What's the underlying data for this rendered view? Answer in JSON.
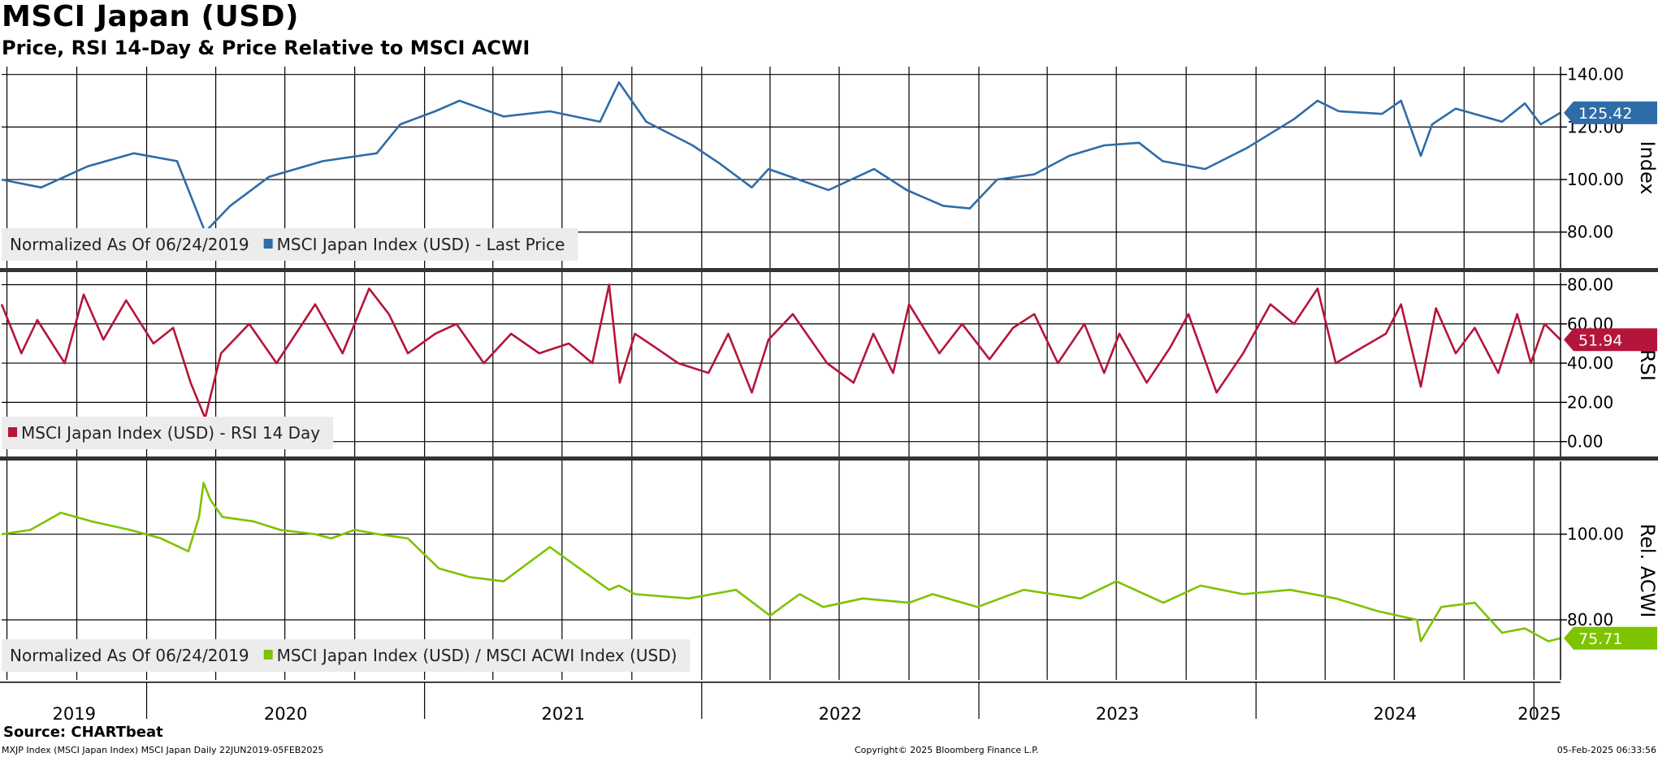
{
  "header": {
    "title": "MSCI Japan (USD)",
    "subtitle": "Price, RSI 14-Day & Price Relative to MSCI ACWI"
  },
  "footer": {
    "source": "Source: CHARTbeat",
    "left": "MXJP Index (MSCI Japan Index) MSCI Japan  Daily 22JUN2019-05FEB2025",
    "center": "Copyright© 2025 Bloomberg Finance L.P.",
    "right": "05-Feb-2025 06:33:56"
  },
  "chart_data": [
    {
      "type": "line",
      "name": "price-panel",
      "ylabel": "Index",
      "ylim": [
        66,
        143
      ],
      "yticks": [
        80,
        100,
        120,
        140
      ],
      "ytick_labels": [
        "80.00",
        "100.00",
        "120.00",
        "140.00"
      ],
      "legend": [
        "Normalized As Of 06/24/2019",
        "MSCI Japan Index (USD) - Last Price"
      ],
      "last_value": "125.42",
      "series": [
        {
          "name": "MSCI Japan Index (USD) - Last Price",
          "color": "#2e6ca8",
          "x": [
            "2019-06-24",
            "2019-08-15",
            "2019-10-15",
            "2019-12-15",
            "2020-02-10",
            "2020-03-18",
            "2020-04-20",
            "2020-06-10",
            "2020-08-20",
            "2020-10-30",
            "2020-11-30",
            "2021-01-15",
            "2021-02-16",
            "2021-04-15",
            "2021-06-15",
            "2021-08-20",
            "2021-09-14",
            "2021-10-20",
            "2021-12-20",
            "2022-01-25",
            "2022-03-08",
            "2022-03-30",
            "2022-06-17",
            "2022-08-16",
            "2022-09-28",
            "2022-11-15",
            "2022-12-20",
            "2023-01-25",
            "2023-03-15",
            "2023-04-30",
            "2023-06-15",
            "2023-07-31",
            "2023-08-31",
            "2023-10-26",
            "2023-12-20",
            "2024-02-20",
            "2024-03-22",
            "2024-04-19",
            "2024-06-15",
            "2024-07-10",
            "2024-08-05",
            "2024-08-20",
            "2024-09-20",
            "2024-11-20",
            "2024-12-20",
            "2025-01-10",
            "2025-02-05"
          ],
          "values": [
            100,
            97,
            105,
            110,
            107,
            80,
            90,
            101,
            107,
            110,
            121,
            126,
            130,
            124,
            126,
            122,
            137,
            122,
            113,
            106,
            97,
            104,
            96,
            104,
            96,
            90,
            89,
            100,
            102,
            109,
            113,
            114,
            107,
            104,
            112,
            123,
            130,
            126,
            125,
            130,
            109,
            121,
            127,
            122,
            129,
            121,
            125.42
          ]
        }
      ]
    },
    {
      "type": "line",
      "name": "rsi-panel",
      "ylabel": "RSI",
      "ylim": [
        -8,
        86
      ],
      "yticks": [
        0,
        20,
        40,
        60,
        80
      ],
      "ytick_labels": [
        "0.00",
        "20.00",
        "40.00",
        "60.00",
        "80.00"
      ],
      "legend": [
        "MSCI Japan Index (USD) - RSI 14 Day"
      ],
      "last_value": "51.94",
      "series": [
        {
          "name": "MSCI Japan Index (USD) - RSI 14 Day",
          "color": "#b5153a",
          "x": [
            "2019-06-24",
            "2019-07-20",
            "2019-08-10",
            "2019-09-15",
            "2019-10-10",
            "2019-11-05",
            "2019-12-05",
            "2020-01-10",
            "2020-02-05",
            "2020-02-28",
            "2020-03-18",
            "2020-04-08",
            "2020-05-15",
            "2020-06-20",
            "2020-08-10",
            "2020-09-15",
            "2020-10-20",
            "2020-11-15",
            "2020-12-10",
            "2021-01-15",
            "2021-02-12",
            "2021-03-20",
            "2021-04-25",
            "2021-06-01",
            "2021-07-10",
            "2021-08-10",
            "2021-09-01",
            "2021-09-15",
            "2021-10-05",
            "2021-11-01",
            "2021-12-01",
            "2022-01-10",
            "2022-02-05",
            "2022-03-08",
            "2022-03-30",
            "2022-05-01",
            "2022-06-15",
            "2022-07-20",
            "2022-08-15",
            "2022-09-10",
            "2022-10-01",
            "2022-11-10",
            "2022-12-10",
            "2023-01-15",
            "2023-02-15",
            "2023-03-15",
            "2023-04-15",
            "2023-05-20",
            "2023-06-15",
            "2023-07-05",
            "2023-08-10",
            "2023-09-10",
            "2023-10-04",
            "2023-11-10",
            "2023-12-15",
            "2024-01-20",
            "2024-02-20",
            "2024-03-22",
            "2024-04-15",
            "2024-05-20",
            "2024-06-20",
            "2024-07-10",
            "2024-08-05",
            "2024-08-25",
            "2024-09-20",
            "2024-10-15",
            "2024-11-15",
            "2024-12-10",
            "2024-12-28",
            "2025-01-15",
            "2025-02-05"
          ],
          "values": [
            70,
            45,
            62,
            40,
            75,
            52,
            72,
            50,
            58,
            30,
            12,
            45,
            60,
            40,
            70,
            45,
            78,
            65,
            45,
            55,
            60,
            40,
            55,
            45,
            50,
            40,
            80,
            30,
            55,
            48,
            40,
            35,
            55,
            25,
            52,
            65,
            40,
            30,
            55,
            35,
            70,
            45,
            60,
            42,
            58,
            65,
            40,
            60,
            35,
            55,
            30,
            48,
            65,
            25,
            45,
            70,
            60,
            78,
            40,
            48,
            55,
            70,
            28,
            68,
            45,
            58,
            35,
            65,
            40,
            60,
            51.94
          ]
        }
      ]
    },
    {
      "type": "line",
      "name": "relative-panel",
      "ylabel": "Rel. ACWI",
      "ylim": [
        66,
        117
      ],
      "yticks": [
        80,
        100
      ],
      "ytick_labels": [
        "80.00",
        "100.00"
      ],
      "legend": [
        "Normalized As Of 06/24/2019",
        "MSCI Japan Index (USD) / MSCI ACWI Index (USD)"
      ],
      "last_value": "75.71",
      "series": [
        {
          "name": "MSCI Japan Index (USD) / MSCI ACWI Index (USD)",
          "color": "#7dc300",
          "x": [
            "2019-06-24",
            "2019-08-01",
            "2019-09-10",
            "2019-10-20",
            "2019-12-10",
            "2020-01-20",
            "2020-02-25",
            "2020-03-10",
            "2020-03-16",
            "2020-03-25",
            "2020-04-10",
            "2020-05-20",
            "2020-06-25",
            "2020-08-10",
            "2020-08-31",
            "2020-10-01",
            "2020-11-01",
            "2020-12-10",
            "2021-01-20",
            "2021-03-01",
            "2021-04-15",
            "2021-06-15",
            "2021-09-01",
            "2021-09-14",
            "2021-10-05",
            "2021-12-15",
            "2022-02-15",
            "2022-04-01",
            "2022-05-10",
            "2022-06-10",
            "2022-08-01",
            "2022-10-01",
            "2022-11-01",
            "2022-12-30",
            "2023-03-01",
            "2023-05-15",
            "2023-07-01",
            "2023-09-01",
            "2023-10-20",
            "2023-12-15",
            "2024-02-15",
            "2024-04-15",
            "2024-06-10",
            "2024-07-31",
            "2024-08-05",
            "2024-09-01",
            "2024-10-15",
            "2024-11-20",
            "2024-12-20",
            "2025-01-20",
            "2025-02-05"
          ],
          "values": [
            100,
            101,
            105,
            103,
            101,
            99,
            96,
            104,
            112,
            108,
            104,
            103,
            101,
            100,
            99,
            101,
            100,
            99,
            92,
            90,
            89,
            97,
            87,
            88,
            86,
            85,
            87,
            81,
            86,
            83,
            85,
            84,
            86,
            83,
            87,
            85,
            89,
            84,
            88,
            86,
            87,
            85,
            82,
            80,
            75,
            83,
            84,
            77,
            78,
            75,
            75.71
          ]
        }
      ]
    }
  ],
  "x_axis": {
    "year_labels": [
      "2019",
      "2020",
      "2021",
      "2022",
      "2023",
      "2024",
      "2025"
    ]
  }
}
